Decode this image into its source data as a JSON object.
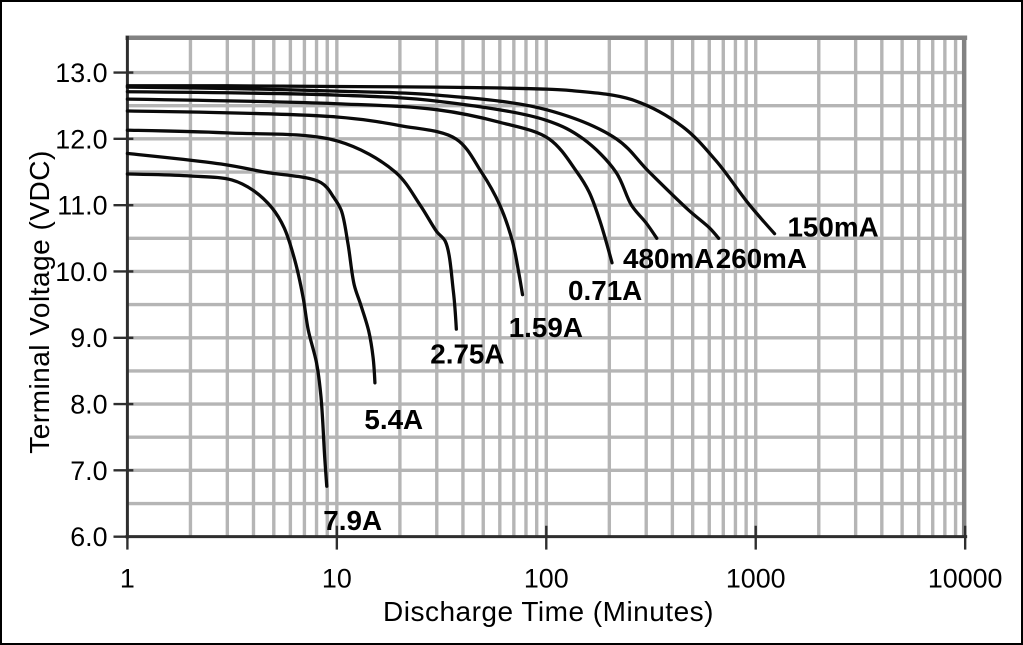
{
  "figure": {
    "background": "#ffffff",
    "border_color": "#000000"
  },
  "chart_data": {
    "type": "line",
    "title": "",
    "xlabel": "Discharge Time (Minutes)",
    "ylabel": "Terminal Voltage (VDC)",
    "x_scale": "log",
    "xlim": [
      1,
      10000
    ],
    "ylim": [
      6.0,
      13.5
    ],
    "x_ticks": [
      1,
      10,
      100,
      1000,
      10000
    ],
    "x_tick_labels": [
      "1",
      "10",
      "100",
      "1000",
      "10000"
    ],
    "y_ticks": [
      13,
      12,
      11,
      10,
      9,
      8,
      7,
      6
    ],
    "y_tick_labels": [
      "13.0",
      "12.0",
      "11.0",
      "10.0",
      "9.0",
      "8.0",
      "7.0",
      "6.0"
    ],
    "grid": {
      "show": true,
      "color": "#b5b5b5",
      "y_step": 0.5,
      "x_minor_log": true
    },
    "frame_color": "#828282",
    "axis_color": "#2e2e2e",
    "curve_color": "#0a0a0a",
    "text_color": "#000000",
    "series": [
      {
        "name": "150mA",
        "label_anchor": {
          "t": 2340,
          "v": 10.68
        },
        "points": [
          [
            1,
            12.8
          ],
          [
            3,
            12.8
          ],
          [
            10,
            12.79
          ],
          [
            30,
            12.78
          ],
          [
            100,
            12.75
          ],
          [
            130,
            12.73
          ],
          [
            257,
            12.59
          ],
          [
            445,
            12.19
          ],
          [
            646,
            11.67
          ],
          [
            925,
            11.02
          ],
          [
            1230,
            10.57
          ]
        ]
      },
      {
        "name": "260mA",
        "label_anchor": {
          "t": 1064,
          "v": 10.2
        },
        "points": [
          [
            1,
            12.78
          ],
          [
            3,
            12.76
          ],
          [
            10,
            12.72
          ],
          [
            30,
            12.66
          ],
          [
            100,
            12.44
          ],
          [
            216,
            12.0
          ],
          [
            310,
            11.5
          ],
          [
            480,
            10.92
          ],
          [
            600,
            10.66
          ],
          [
            665,
            10.5
          ]
        ]
      },
      {
        "name": "480mA",
        "label_anchor": {
          "t": 384,
          "v": 10.2
        },
        "points": [
          [
            1,
            12.71
          ],
          [
            10,
            12.66
          ],
          [
            30,
            12.57
          ],
          [
            100,
            12.28
          ],
          [
            150,
            12.0
          ],
          [
            215,
            11.5
          ],
          [
            255,
            11.0
          ],
          [
            300,
            10.73
          ],
          [
            337,
            10.5
          ]
        ]
      },
      {
        "name": "0.71A",
        "label_anchor": {
          "t": 191,
          "v": 9.72
        },
        "points": [
          [
            1,
            12.6
          ],
          [
            10,
            12.53
          ],
          [
            30,
            12.44
          ],
          [
            60,
            12.25
          ],
          [
            103,
            12.0
          ],
          [
            140,
            11.5
          ],
          [
            160,
            11.2
          ],
          [
            180,
            10.77
          ],
          [
            206,
            10.13
          ]
        ]
      },
      {
        "name": "1.59A",
        "label_anchor": {
          "t": 99.5,
          "v": 9.16
        },
        "points": [
          [
            1,
            12.42
          ],
          [
            10,
            12.33
          ],
          [
            20,
            12.2
          ],
          [
            37,
            12.0
          ],
          [
            49,
            11.5
          ],
          [
            60,
            11.0
          ],
          [
            69,
            10.45
          ],
          [
            74,
            9.97
          ],
          [
            77,
            9.65
          ]
        ]
      },
      {
        "name": "2.75A",
        "label_anchor": {
          "t": 42,
          "v": 8.76
        },
        "points": [
          [
            1,
            12.13
          ],
          [
            3,
            12.09
          ],
          [
            10,
            11.97
          ],
          [
            19,
            11.5
          ],
          [
            25,
            11.0
          ],
          [
            30,
            10.6
          ],
          [
            33,
            10.45
          ],
          [
            36,
            9.7
          ],
          [
            37.2,
            9.13
          ]
        ]
      },
      {
        "name": "5.4A",
        "label_anchor": {
          "t": 18.7,
          "v": 7.77
        },
        "points": [
          [
            1,
            11.78
          ],
          [
            2.8,
            11.62
          ],
          [
            4.5,
            11.5
          ],
          [
            8.4,
            11.34
          ],
          [
            9.7,
            11.11
          ],
          [
            10.5,
            10.92
          ],
          [
            11.3,
            10.42
          ],
          [
            12.1,
            9.8
          ],
          [
            13.0,
            9.5
          ],
          [
            14.2,
            9.1
          ],
          [
            14.9,
            8.7
          ],
          [
            15.2,
            8.32
          ]
        ]
      },
      {
        "name": "7.9A",
        "label_anchor": {
          "t": 11.9,
          "v": 6.25
        },
        "points": [
          [
            1,
            11.47
          ],
          [
            2,
            11.44
          ],
          [
            3.15,
            11.38
          ],
          [
            4,
            11.22
          ],
          [
            4.9,
            10.96
          ],
          [
            5.6,
            10.66
          ],
          [
            6.3,
            10.17
          ],
          [
            6.9,
            9.61
          ],
          [
            7.3,
            9.12
          ],
          [
            8.0,
            8.62
          ],
          [
            8.4,
            8.11
          ],
          [
            8.75,
            7.2
          ],
          [
            8.95,
            6.76
          ]
        ]
      }
    ]
  }
}
